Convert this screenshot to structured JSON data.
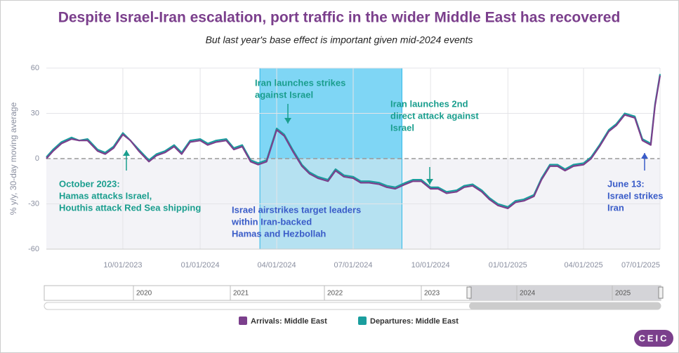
{
  "chart_data": {
    "type": "line",
    "title": "Despite Israel-Iran escalation, port traffic in the wider Middle East has recovered",
    "subtitle": "But last year's base effect is important given mid-2024 events",
    "y_label": "% y/y, 30-day moving average",
    "x": [
      "2023-07-02",
      "2023-07-10",
      "2023-07-20",
      "2023-08-01",
      "2023-08-10",
      "2023-08-20",
      "2023-09-01",
      "2023-09-10",
      "2023-09-20",
      "2023-10-01",
      "2023-10-10",
      "2023-10-20",
      "2023-11-01",
      "2023-11-10",
      "2023-11-20",
      "2023-12-01",
      "2023-12-10",
      "2023-12-20",
      "2024-01-01",
      "2024-01-10",
      "2024-01-20",
      "2024-02-01",
      "2024-02-10",
      "2024-02-20",
      "2024-03-01",
      "2024-03-10",
      "2024-03-20",
      "2024-04-01",
      "2024-04-10",
      "2024-04-20",
      "2024-05-01",
      "2024-05-10",
      "2024-05-20",
      "2024-06-01",
      "2024-06-10",
      "2024-06-20",
      "2024-07-01",
      "2024-07-10",
      "2024-07-20",
      "2024-08-01",
      "2024-08-10",
      "2024-08-20",
      "2024-09-01",
      "2024-09-10",
      "2024-09-20",
      "2024-10-01",
      "2024-10-10",
      "2024-10-20",
      "2024-11-01",
      "2024-11-10",
      "2024-11-20",
      "2024-12-01",
      "2024-12-10",
      "2024-12-20",
      "2025-01-01",
      "2025-01-10",
      "2025-01-20",
      "2025-02-01",
      "2025-02-10",
      "2025-02-20",
      "2025-03-01",
      "2025-03-10",
      "2025-03-20",
      "2025-04-01",
      "2025-04-10",
      "2025-04-20",
      "2025-05-01",
      "2025-05-10",
      "2025-05-20",
      "2025-06-01",
      "2025-06-10",
      "2025-06-20",
      "2025-06-25",
      "2025-07-01"
    ],
    "series": [
      {
        "name": "Arrivals: Middle East",
        "color": "#7b3f8c",
        "values": [
          0,
          5,
          10,
          13,
          12,
          12,
          5,
          3,
          7,
          16,
          12,
          5,
          -2,
          2,
          4,
          8,
          3,
          11,
          12,
          9,
          11,
          12,
          6,
          8,
          -2,
          -4,
          -2,
          19,
          15,
          5,
          -5,
          -10,
          -13,
          -15,
          -8,
          -12,
          -13,
          -16,
          -16,
          -17,
          -19,
          -20,
          -17,
          -15,
          -15,
          -20,
          -20,
          -23,
          -22,
          -19,
          -18,
          -22,
          -27,
          -31,
          -33,
          -29,
          -28,
          -25,
          -14,
          -5,
          -5,
          -8,
          -5,
          -4,
          0,
          8,
          18,
          22,
          29,
          27,
          12,
          9,
          35,
          55
        ]
      },
      {
        "name": "Departures: Middle East",
        "color": "#1a9e9e",
        "values": [
          1,
          6,
          11,
          14,
          12,
          13,
          6,
          4,
          8,
          17,
          12,
          6,
          -1,
          3,
          5,
          9,
          4,
          12,
          13,
          10,
          12,
          13,
          7,
          9,
          -1,
          -3,
          -1,
          20,
          16,
          6,
          -4,
          -9,
          -12,
          -14,
          -7,
          -11,
          -12,
          -15,
          -15,
          -16,
          -18,
          -19,
          -16,
          -14,
          -14,
          -19,
          -19,
          -22,
          -21,
          -18,
          -17,
          -21,
          -26,
          -30,
          -32,
          -28,
          -27,
          -24,
          -13,
          -4,
          -4,
          -7,
          -4,
          -3,
          1,
          9,
          19,
          23,
          30,
          28,
          13,
          10,
          36,
          56
        ]
      }
    ],
    "xlim": [
      "2023-07-02",
      "2025-07-01"
    ],
    "xticks": [
      {
        "value": "2023-10-01",
        "label": "10/01/2023"
      },
      {
        "value": "2024-01-01",
        "label": "01/01/2024"
      },
      {
        "value": "2024-04-01",
        "label": "04/01/2024"
      },
      {
        "value": "2024-07-01",
        "label": "07/01/2024"
      },
      {
        "value": "2024-10-01",
        "label": "10/01/2024"
      },
      {
        "value": "2025-01-01",
        "label": "01/01/2025"
      },
      {
        "value": "2025-04-01",
        "label": "04/01/2025"
      },
      {
        "value": "2025-07-01",
        "label": "07/01/2025"
      }
    ],
    "ylim": [
      -60,
      60
    ],
    "yticks": [
      -60,
      -30,
      0,
      30,
      60
    ],
    "grid": true,
    "highlight_band": [
      "2024-03-12",
      "2024-08-28"
    ],
    "annotations": [
      {
        "lines": [
          "Iran launches strikes",
          "against Israel"
        ],
        "color": "#1a9e8e"
      },
      {
        "lines": [
          "Iran launches 2nd",
          "direct attack against",
          "Israel"
        ],
        "color": "#1a9e8e"
      },
      {
        "lines": [
          "October 2023:",
          "Hamas attacks Israel,",
          "Houthis attack Red Sea shipping"
        ],
        "color": "#1a9e8e"
      },
      {
        "lines": [
          "Israel airstrikes target leaders",
          "within Iran-backed",
          "Hamas and Hezbollah"
        ],
        "color": "#3a5cc8"
      },
      {
        "lines": [
          "June 13:",
          "Israel strikes",
          "Iran"
        ],
        "color": "#3a5cc8"
      }
    ],
    "navigator_years": [
      "2020",
      "2021",
      "2022",
      "2023",
      "2024",
      "2025"
    ]
  },
  "logo": "CEIC"
}
